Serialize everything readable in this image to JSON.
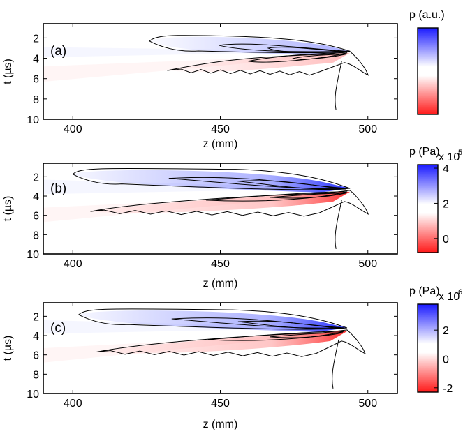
{
  "chart_data": [
    {
      "type": "heatmap",
      "panel_label": "(a)",
      "xlabel": "z (mm)",
      "ylabel": "t (µs)",
      "xlim": [
        390,
        510
      ],
      "ylim": [
        10,
        0.6
      ],
      "x_ticks": [
        400,
        450,
        500
      ],
      "y_ticks": [
        2,
        4,
        6,
        8,
        10
      ],
      "colorbar": {
        "title": "p (a.u.)",
        "exponent": "",
        "ticks": [],
        "vmin": -1,
        "vmax": 1,
        "colors": [
          "#ff0000",
          "#ffffff",
          "#0000ff"
        ]
      },
      "field": {
        "positive_lobe": {
          "tip_z": 493,
          "tip_t": 3.3,
          "start_z": 426,
          "top_t": 1.9,
          "peak": 0.55
        },
        "negative_lobe": {
          "tip_z": 493,
          "tip_t": 3.6,
          "start_z": 432,
          "bottom_t": 5.2,
          "peak": -0.35
        }
      }
    },
    {
      "type": "heatmap",
      "panel_label": "(b)",
      "xlabel": "z (mm)",
      "ylabel": "t (µs)",
      "xlim": [
        390,
        510
      ],
      "ylim": [
        10,
        0.6
      ],
      "x_ticks": [
        400,
        450,
        500
      ],
      "y_ticks": [
        2,
        4,
        6,
        8,
        10
      ],
      "colorbar": {
        "title": "p (Pa)",
        "exponent": "x 10",
        "exponent_power": "5",
        "ticks": [
          4,
          2,
          0
        ],
        "vmin": -0.8,
        "vmax": 4.2,
        "colors": [
          "#ff0000",
          "#ffffff",
          "#0000ff"
        ]
      },
      "field": {
        "positive_lobe": {
          "tip_z": 493,
          "tip_t": 3.2,
          "start_z": 400,
          "top_t": 1.3,
          "peak": 4.0
        },
        "negative_lobe": {
          "tip_z": 493,
          "tip_t": 3.7,
          "start_z": 406,
          "bottom_t": 5.6,
          "peak": -0.6
        }
      }
    },
    {
      "type": "heatmap",
      "panel_label": "(c)",
      "xlabel": "z (mm)",
      "ylabel": "t (µs)",
      "xlim": [
        390,
        510
      ],
      "ylim": [
        10,
        0.6
      ],
      "x_ticks": [
        400,
        450,
        500
      ],
      "y_ticks": [
        2,
        4,
        6,
        8,
        10
      ],
      "colorbar": {
        "title": "p (Pa)",
        "exponent": "x 10",
        "exponent_power": "6",
        "ticks": [
          2,
          0,
          -2
        ],
        "vmin": -2.3,
        "vmax": 3.8,
        "colors": [
          "#ff0000",
          "#ffffff",
          "#0000ff"
        ]
      },
      "field": {
        "positive_lobe": {
          "tip_z": 492,
          "tip_t": 3.2,
          "start_z": 402,
          "top_t": 1.4,
          "peak": 3.4
        },
        "negative_lobe": {
          "tip_z": 492,
          "tip_t": 3.7,
          "start_z": 408,
          "bottom_t": 5.7,
          "peak": -2.0
        }
      }
    }
  ]
}
